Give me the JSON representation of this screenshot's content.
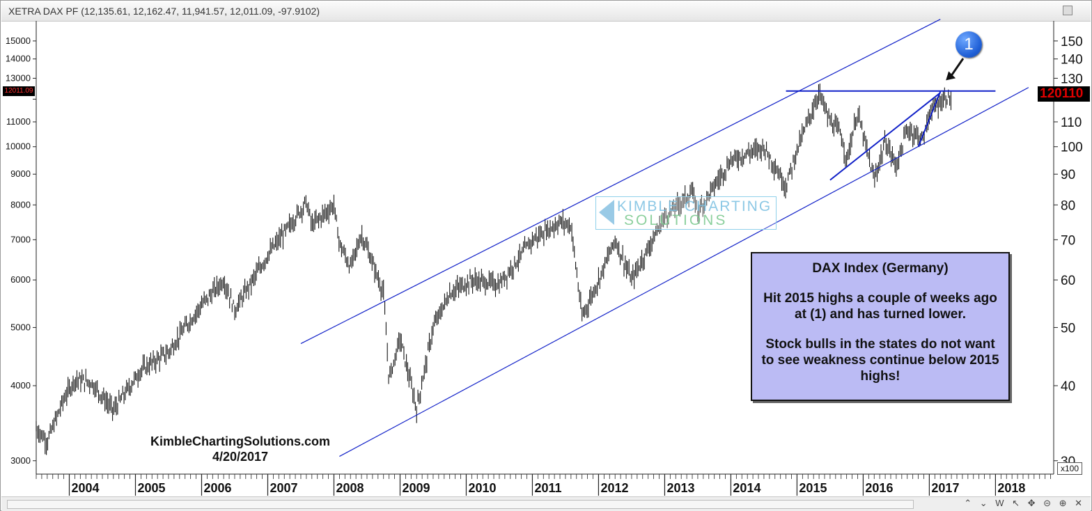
{
  "titlebar": {
    "title": "XETRA DAX PF (12,135.61, 12,162.47, 11,941.57, 12,011.09, -97.9102)"
  },
  "chart_data": {
    "type": "ohlc",
    "ticker": "XETRA DAX PF",
    "scale": "log",
    "ylim": [
      2850,
      16200
    ],
    "left_ticks": [
      3000,
      4000,
      5000,
      6000,
      7000,
      8000,
      9000,
      10000,
      11000,
      12000,
      13000,
      14000,
      15000
    ],
    "left_tick_labels": [
      "3000",
      "4000",
      "5000",
      "6000",
      "7000",
      "8000",
      "9000",
      "10000",
      "11000",
      "",
      "13000",
      "14000",
      "15000"
    ],
    "right_tick_labels": [
      "30",
      "40",
      "50",
      "60",
      "70",
      "80",
      "90",
      "100",
      "110",
      "",
      "130",
      "140",
      "150"
    ],
    "right_axis_multiplier": "x100",
    "x_years": [
      "2004",
      "2005",
      "2006",
      "2007",
      "2008",
      "2009",
      "2010",
      "2011",
      "2012",
      "2013",
      "2014",
      "2015",
      "2016",
      "2017",
      "2018"
    ],
    "last_price": "12011.09",
    "right_last_label": "120110",
    "price_anchors": [
      [
        "2003-06",
        3400
      ],
      [
        "2003-08",
        3230
      ],
      [
        "2003-11",
        3800
      ],
      [
        "2004-01",
        4100
      ],
      [
        "2004-04",
        4050
      ],
      [
        "2004-08",
        3640
      ],
      [
        "2005-01",
        4250
      ],
      [
        "2005-06",
        4550
      ],
      [
        "2005-09",
        5000
      ],
      [
        "2005-12",
        5450
      ],
      [
        "2006-04",
        6000
      ],
      [
        "2006-06",
        5350
      ],
      [
        "2006-12",
        6600
      ],
      [
        "2007-04",
        7400
      ],
      [
        "2007-07",
        8100
      ],
      [
        "2007-08",
        7400
      ],
      [
        "2007-12",
        8000
      ],
      [
        "2008-01",
        6900
      ],
      [
        "2008-03",
        6300
      ],
      [
        "2008-05",
        7150
      ],
      [
        "2008-07",
        6400
      ],
      [
        "2008-09",
        5700
      ],
      [
        "2008-10",
        4100
      ],
      [
        "2008-12",
        4800
      ],
      [
        "2009-03",
        3660
      ],
      [
        "2009-06",
        5000
      ],
      [
        "2009-09",
        5700
      ],
      [
        "2010-01",
        6000
      ],
      [
        "2010-06",
        5900
      ],
      [
        "2010-12",
        7000
      ],
      [
        "2011-05",
        7500
      ],
      [
        "2011-07",
        7400
      ],
      [
        "2011-09",
        5200
      ],
      [
        "2011-12",
        6000
      ],
      [
        "2012-03",
        7000
      ],
      [
        "2012-06",
        6000
      ],
      [
        "2012-12",
        7650
      ],
      [
        "2013-05",
        8400
      ],
      [
        "2013-06",
        7800
      ],
      [
        "2013-12",
        9500
      ],
      [
        "2014-06",
        10000
      ],
      [
        "2014-10",
        8600
      ],
      [
        "2014-12",
        9900
      ],
      [
        "2015-04",
        12300
      ],
      [
        "2015-06",
        11000
      ],
      [
        "2015-08",
        10500
      ],
      [
        "2015-09",
        9500
      ],
      [
        "2015-11",
        11400
      ],
      [
        "2016-02",
        8800
      ],
      [
        "2016-04",
        10200
      ],
      [
        "2016-06",
        9300
      ],
      [
        "2016-08",
        10700
      ],
      [
        "2016-11",
        10300
      ],
      [
        "2016-12",
        11400
      ],
      [
        "2017-03",
        12100
      ],
      [
        "2017-04",
        12011
      ]
    ],
    "lines": [
      {
        "name": "channel-upper",
        "from": [
          "2007-06",
          4700
        ],
        "to": [
          "2017-02",
          16300
        ]
      },
      {
        "name": "channel-lower",
        "from": [
          "2008-01",
          3050
        ],
        "to": [
          "2018-06",
          12550
        ]
      },
      {
        "name": "2015-high-resistance",
        "from": [
          "2014-10",
          12380
        ],
        "to": [
          "2018-00",
          12380
        ]
      },
      {
        "name": "rising-wedge-upper",
        "from": [
          "2015-06",
          8800
        ],
        "to": [
          "2017-02",
          12300
        ]
      },
      {
        "name": "rising-wedge-lower",
        "from": [
          "2016-10",
          10000
        ],
        "to": [
          "2017-02",
          12350
        ]
      }
    ]
  },
  "callout": {
    "label": "1",
    "color": "#1f5fd6"
  },
  "watermark": {
    "line1": "KIMBLE CHARTING",
    "line2": "SOLUTIONS"
  },
  "note": {
    "title": "DAX Index (Germany)",
    "p1": "Hit 2015 highs a couple of weeks ago at (1) and has turned lower.",
    "p2": "Stock bulls in the states do not want to see weakness continue below 2015 highs!",
    "bg_color": "#bbbbf4"
  },
  "credit": {
    "site": "KimbleChartingSolutions.com",
    "date": "4/20/2017"
  },
  "axis_badge": {
    "label": "x100"
  },
  "colors": {
    "bars": "#111111",
    "trendlines": "#1020c8",
    "price_tag_text": "#e00000"
  },
  "bottombar": {
    "controls": "⌃ ⌄ W ↖ ✥ ⊝ ⊕ ✕"
  }
}
